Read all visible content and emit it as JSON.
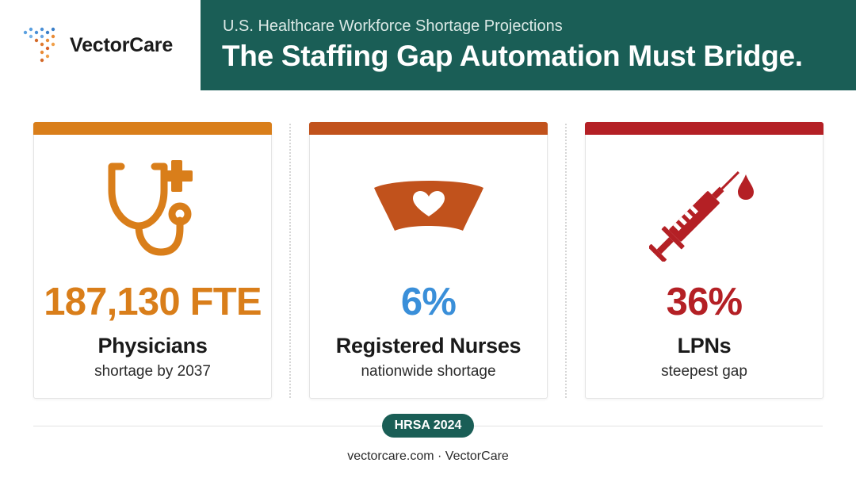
{
  "brand": {
    "name": "VectorCare",
    "icon": "dotted-arrow-logo-icon"
  },
  "header": {
    "subtitle": "U.S. Healthcare Workforce Shortage Projections",
    "title": "The Staffing Gap Automation Must Bridge."
  },
  "cards": [
    {
      "stat": "187,130 FTE",
      "label": "Physicians",
      "desc": "shortage by 2037",
      "icon": "stethoscope-plus-icon",
      "color": "#d97e1a"
    },
    {
      "stat": "6%",
      "label": "Registered Nurses",
      "desc": "nationwide shortage",
      "icon": "nurse-cap-heart-icon",
      "color": "#3a8fd9",
      "accent": "#c1521c"
    },
    {
      "stat": "36%",
      "label": "LPNs",
      "desc": "steepest gap",
      "icon": "syringe-icon",
      "color": "#b42025"
    }
  ],
  "colors": {
    "banner": "#1a5e56",
    "orange": "#d97e1a",
    "rust": "#c1521c",
    "red": "#b42025",
    "blue": "#3a8fd9"
  },
  "footer": {
    "badge": "HRSA 2024",
    "site": "vectorcare.com · VectorCare"
  }
}
